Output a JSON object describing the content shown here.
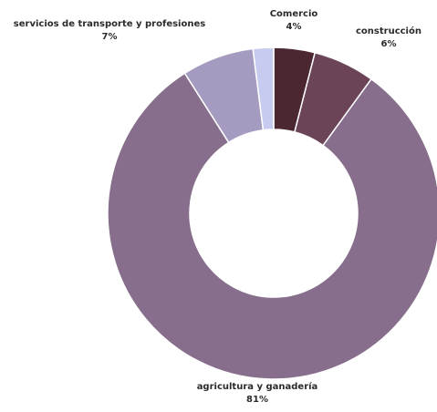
{
  "chart_data": {
    "type": "pie",
    "variant": "donut",
    "title": "",
    "slices": [
      {
        "category": "Comercio",
        "value": 4,
        "label": "4%",
        "color": "#4a2731"
      },
      {
        "category": "construcción",
        "value": 6,
        "label": "6%",
        "color": "#6c4458"
      },
      {
        "category": "agricultura y ganadería",
        "value": 81,
        "label": "81%",
        "color": "#876e8c"
      },
      {
        "category": "servicios de transporte y profesiones",
        "value": 7,
        "label": "7%",
        "color": "#a59bc0"
      },
      {
        "category": "",
        "value": 2,
        "label": "",
        "color": "#c6cbef"
      }
    ],
    "legend": "none",
    "start_angle": "12 o'clock",
    "direction": "clockwise"
  }
}
